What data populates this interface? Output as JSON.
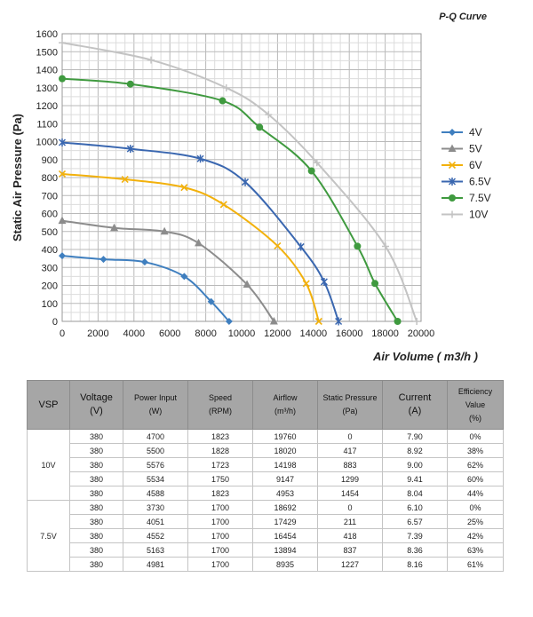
{
  "chart_data": {
    "type": "line",
    "title": "P-Q Curve",
    "xlabel": "Air Volume ( m3/h )",
    "ylabel": "Static Air Pressure  (Pa)",
    "xlim": [
      0,
      20000
    ],
    "ylim": [
      0,
      1600
    ],
    "x_ticks": [
      "0",
      "2000",
      "4000",
      "6000",
      "8000",
      "10000",
      "12000",
      "14000",
      "16000",
      "18000",
      "20000"
    ],
    "y_ticks": [
      "0",
      "100",
      "200",
      "300",
      "400",
      "500",
      "600",
      "700",
      "800",
      "900",
      "1000",
      "1100",
      "1200",
      "1300",
      "1400",
      "1500",
      "1600"
    ],
    "grid": true,
    "legend_position": "right",
    "series": [
      {
        "name": "4V",
        "color": "#3f7fbf",
        "marker": "diamond",
        "x": [
          0,
          2300,
          4600,
          6800,
          8300,
          9300
        ],
        "y": [
          365,
          345,
          330,
          250,
          110,
          0
        ]
      },
      {
        "name": "5V",
        "color": "#8c8c8c",
        "marker": "triangle",
        "x": [
          0,
          2900,
          5700,
          7600,
          10300,
          11800
        ],
        "y": [
          560,
          520,
          500,
          435,
          205,
          0
        ]
      },
      {
        "name": "6V",
        "color": "#f2b10c",
        "marker": "x",
        "x": [
          0,
          3500,
          6800,
          9000,
          12000,
          13600,
          14300
        ],
        "y": [
          820,
          790,
          745,
          650,
          420,
          210,
          0
        ]
      },
      {
        "name": "6.5V",
        "color": "#3a67b0",
        "marker": "star",
        "x": [
          0,
          3800,
          7700,
          10200,
          13300,
          14600,
          15400
        ],
        "y": [
          995,
          960,
          905,
          775,
          415,
          220,
          0
        ]
      },
      {
        "name": "7.5V",
        "color": "#3f9a3f",
        "marker": "circle",
        "x": [
          0,
          3800,
          8935,
          11000,
          13894,
          16454,
          17429,
          18692
        ],
        "y": [
          1350,
          1320,
          1227,
          1080,
          837,
          418,
          211,
          0
        ]
      },
      {
        "name": "10V",
        "color": "#c3c3c3",
        "marker": "plus",
        "x": [
          0,
          4953,
          9147,
          11500,
          14198,
          18020,
          19760
        ],
        "y": [
          1550,
          1454,
          1299,
          1150,
          883,
          417,
          0
        ]
      }
    ]
  },
  "table": {
    "headers": [
      "VSP",
      "Voltage\n(V)",
      "Power Input\n(W)",
      "Speed\n(RPM)",
      "Airflow\n(m³/h)",
      "Static Pressure\n(Pa)",
      "Current\n(A)",
      "Efficiency\nValue\n(%)"
    ],
    "groups": [
      {
        "label": "10V",
        "rows": [
          [
            "380",
            "4700",
            "1823",
            "19760",
            "0",
            "7.90",
            "0%"
          ],
          [
            "380",
            "5500",
            "1828",
            "18020",
            "417",
            "8.92",
            "38%"
          ],
          [
            "380",
            "5576",
            "1723",
            "14198",
            "883",
            "9.00",
            "62%"
          ],
          [
            "380",
            "5534",
            "1750",
            "9147",
            "1299",
            "9.41",
            "60%"
          ],
          [
            "380",
            "4588",
            "1823",
            "4953",
            "1454",
            "8.04",
            "44%"
          ]
        ]
      },
      {
        "label": "7.5V",
        "rows": [
          [
            "380",
            "3730",
            "1700",
            "18692",
            "0",
            "6.10",
            "0%"
          ],
          [
            "380",
            "4051",
            "1700",
            "17429",
            "211",
            "6.57",
            "25%"
          ],
          [
            "380",
            "4552",
            "1700",
            "16454",
            "418",
            "7.39",
            "42%"
          ],
          [
            "380",
            "5163",
            "1700",
            "13894",
            "837",
            "8.36",
            "63%"
          ],
          [
            "380",
            "4981",
            "1700",
            "8935",
            "1227",
            "8.16",
            "61%"
          ]
        ]
      }
    ]
  }
}
